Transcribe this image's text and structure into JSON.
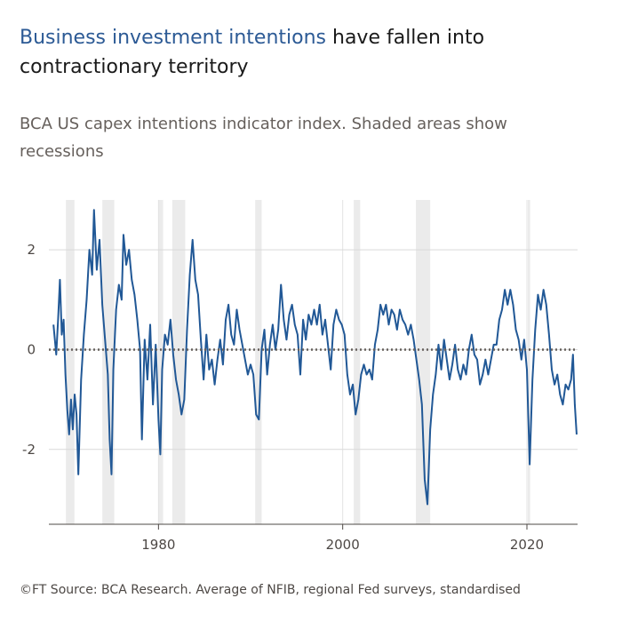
{
  "chart_data": {
    "type": "line",
    "title_highlight": "Business investment intentions",
    "title_rest": "have fallen into contractionary territory",
    "subtitle": "BCA US capex intentions indicator index. Shaded areas show recessions",
    "source": "©FT Source: BCA Research. Average of NFIB, regional Fed surveys, standardised",
    "xlim": [
      1968.1,
      2025.5
    ],
    "xticks": [
      1980,
      2000,
      2020
    ],
    "ylim": [
      -3.5,
      3.0
    ],
    "yticks": [
      2,
      0,
      -2
    ],
    "grid": true,
    "reference_line": 0,
    "recessions": [
      [
        1969.95,
        1970.87
      ],
      [
        1973.9,
        1975.2
      ],
      [
        1980.0,
        1980.5
      ],
      [
        1981.5,
        1982.9
      ],
      [
        1990.5,
        1991.2
      ],
      [
        2001.2,
        2001.9
      ],
      [
        2007.95,
        2009.5
      ],
      [
        2020.1,
        2020.35
      ]
    ],
    "recession_color": "#ebebeb",
    "x": [
      1968.6,
      1968.9,
      1969.1,
      1969.3,
      1969.5,
      1969.7,
      1969.9,
      1970.1,
      1970.3,
      1970.5,
      1970.7,
      1970.9,
      1971.1,
      1971.3,
      1971.6,
      1971.9,
      1972.2,
      1972.5,
      1972.8,
      1973.0,
      1973.3,
      1973.6,
      1973.9,
      1974.2,
      1974.5,
      1974.7,
      1974.9,
      1975.1,
      1975.4,
      1975.7,
      1976.0,
      1976.2,
      1976.5,
      1976.8,
      1977.1,
      1977.4,
      1977.7,
      1978.0,
      1978.2,
      1978.5,
      1978.8,
      1979.1,
      1979.4,
      1979.7,
      1980.0,
      1980.2,
      1980.4,
      1980.7,
      1981.0,
      1981.3,
      1981.6,
      1981.9,
      1982.2,
      1982.5,
      1982.8,
      1983.1,
      1983.4,
      1983.7,
      1984.0,
      1984.3,
      1984.6,
      1984.9,
      1985.2,
      1985.5,
      1985.8,
      1986.1,
      1986.4,
      1986.7,
      1987.0,
      1987.3,
      1987.6,
      1987.9,
      1988.2,
      1988.5,
      1988.8,
      1989.1,
      1989.4,
      1989.7,
      1990.0,
      1990.3,
      1990.6,
      1990.9,
      1991.2,
      1991.5,
      1991.8,
      1992.1,
      1992.4,
      1992.7,
      1993.0,
      1993.3,
      1993.6,
      1993.9,
      1994.2,
      1994.5,
      1994.8,
      1995.1,
      1995.4,
      1995.7,
      1996.0,
      1996.3,
      1996.6,
      1996.9,
      1997.2,
      1997.5,
      1997.8,
      1998.1,
      1998.4,
      1998.7,
      1999.0,
      1999.3,
      1999.6,
      1999.9,
      2000.2,
      2000.5,
      2000.8,
      2001.1,
      2001.4,
      2001.7,
      2002.0,
      2002.3,
      2002.6,
      2002.9,
      2003.2,
      2003.5,
      2003.8,
      2004.1,
      2004.4,
      2004.7,
      2005.0,
      2005.3,
      2005.6,
      2005.9,
      2006.2,
      2006.5,
      2006.8,
      2007.1,
      2007.4,
      2007.7,
      2008.0,
      2008.3,
      2008.6,
      2008.9,
      2009.2,
      2009.5,
      2009.8,
      2010.1,
      2010.4,
      2010.7,
      2011.0,
      2011.3,
      2011.6,
      2011.9,
      2012.2,
      2012.5,
      2012.8,
      2013.1,
      2013.4,
      2013.7,
      2014.0,
      2014.3,
      2014.6,
      2014.9,
      2015.2,
      2015.5,
      2015.8,
      2016.1,
      2016.4,
      2016.7,
      2017.0,
      2017.3,
      2017.6,
      2017.9,
      2018.2,
      2018.5,
      2018.8,
      2019.1,
      2019.4,
      2019.7,
      2020.0,
      2020.3,
      2020.6,
      2020.9,
      2021.2,
      2021.5,
      2021.8,
      2022.1,
      2022.4,
      2022.7,
      2023.0,
      2023.3,
      2023.6,
      2023.9,
      2024.2,
      2024.5,
      2024.8,
      2025.0,
      2025.2,
      2025.4
    ],
    "series": [
      {
        "color": "#215896",
        "values": [
          0.5,
          -0.1,
          0.6,
          1.4,
          0.3,
          0.6,
          -0.5,
          -1.2,
          -1.7,
          -1.0,
          -1.6,
          -0.9,
          -1.3,
          -2.5,
          -0.6,
          0.3,
          1.0,
          2.0,
          1.5,
          2.8,
          1.6,
          2.2,
          0.9,
          0.2,
          -0.5,
          -1.8,
          -2.5,
          -0.4,
          0.8,
          1.3,
          1.0,
          2.3,
          1.7,
          2.0,
          1.4,
          1.1,
          0.6,
          0.0,
          -1.8,
          0.2,
          -0.6,
          0.5,
          -1.1,
          0.1,
          -1.4,
          -2.1,
          -0.4,
          0.3,
          0.1,
          0.6,
          -0.1,
          -0.6,
          -0.9,
          -1.3,
          -1.0,
          0.4,
          1.5,
          2.2,
          1.4,
          1.1,
          0.2,
          -0.6,
          0.3,
          -0.4,
          -0.2,
          -0.7,
          -0.2,
          0.2,
          -0.3,
          0.6,
          0.9,
          0.3,
          0.1,
          0.8,
          0.4,
          0.1,
          -0.2,
          -0.5,
          -0.3,
          -0.5,
          -1.3,
          -1.4,
          0.0,
          0.4,
          -0.5,
          0.1,
          0.5,
          0.0,
          0.4,
          1.3,
          0.6,
          0.2,
          0.7,
          0.9,
          0.5,
          0.3,
          -0.5,
          0.6,
          0.2,
          0.7,
          0.5,
          0.8,
          0.5,
          0.9,
          0.3,
          0.6,
          0.1,
          -0.4,
          0.5,
          0.8,
          0.6,
          0.5,
          0.3,
          -0.5,
          -0.9,
          -0.7,
          -1.3,
          -1.0,
          -0.5,
          -0.3,
          -0.5,
          -0.4,
          -0.6,
          0.1,
          0.4,
          0.9,
          0.7,
          0.9,
          0.5,
          0.8,
          0.7,
          0.4,
          0.8,
          0.6,
          0.5,
          0.3,
          0.5,
          0.2,
          -0.2,
          -0.6,
          -1.1,
          -2.6,
          -3.1,
          -1.6,
          -0.9,
          -0.5,
          0.1,
          -0.4,
          0.2,
          -0.2,
          -0.6,
          -0.3,
          0.1,
          -0.4,
          -0.6,
          -0.3,
          -0.5,
          0.0,
          0.3,
          -0.1,
          -0.2,
          -0.7,
          -0.5,
          -0.2,
          -0.5,
          -0.2,
          0.1,
          0.1,
          0.6,
          0.8,
          1.2,
          0.9,
          1.2,
          0.9,
          0.4,
          0.2,
          -0.2,
          0.2,
          -0.4,
          -2.3,
          -0.6,
          0.4,
          1.1,
          0.8,
          1.2,
          0.9,
          0.3,
          -0.4,
          -0.7,
          -0.5,
          -0.9,
          -1.1,
          -0.7,
          -0.8,
          -0.6,
          -0.1,
          -1.1,
          -1.7
        ]
      }
    ]
  }
}
